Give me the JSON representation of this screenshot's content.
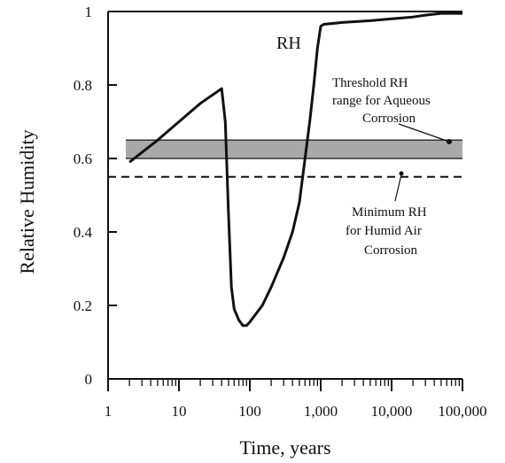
{
  "chart_data": {
    "type": "line",
    "xscale": "log",
    "xlabel": "Time, years",
    "ylabel": "Relative Humidity",
    "xlim": [
      1,
      100000
    ],
    "ylim": [
      0,
      1
    ],
    "xticks": [
      {
        "value": 1,
        "label": "1"
      },
      {
        "value": 10,
        "label": "10"
      },
      {
        "value": 100,
        "label": "100"
      },
      {
        "value": 1000,
        "label": "1,000"
      },
      {
        "value": 10000,
        "label": "10,000"
      },
      {
        "value": 100000,
        "label": "100,000"
      }
    ],
    "yticks": [
      {
        "value": 0,
        "label": "0"
      },
      {
        "value": 0.2,
        "label": "0.2"
      },
      {
        "value": 0.4,
        "label": "0.4"
      },
      {
        "value": 0.6,
        "label": "0.6"
      },
      {
        "value": 0.8,
        "label": "0.8"
      },
      {
        "value": 1,
        "label": "1"
      }
    ],
    "series": [
      {
        "name": "RH",
        "x": [
          2,
          5,
          10,
          20,
          40,
          45,
          50,
          55,
          60,
          70,
          80,
          90,
          100,
          150,
          200,
          300,
          400,
          500,
          600,
          700,
          800,
          900,
          1000,
          1100,
          2000,
          5000,
          10000,
          20000,
          30000,
          50000,
          100000
        ],
        "y": [
          0.59,
          0.65,
          0.7,
          0.75,
          0.79,
          0.7,
          0.45,
          0.25,
          0.19,
          0.16,
          0.145,
          0.145,
          0.155,
          0.2,
          0.25,
          0.33,
          0.4,
          0.48,
          0.6,
          0.7,
          0.8,
          0.9,
          0.96,
          0.965,
          0.97,
          0.975,
          0.98,
          0.985,
          0.99,
          0.995,
          0.995
        ]
      }
    ],
    "threshold_band": {
      "y_low": 0.6,
      "y_high": 0.65
    },
    "minimum_line": {
      "y": 0.55
    },
    "annotations": {
      "rh_label": "RH",
      "threshold_line1": "Threshold RH",
      "threshold_line2": "range for Aqueous",
      "threshold_line3": "Corrosion",
      "minimum_line1": "Minimum RH",
      "minimum_line2": "for Humid Air",
      "minimum_line3": "Corrosion"
    },
    "colors": {
      "line": "#111111",
      "band": "#9a9a9a",
      "axis": "#111111"
    }
  }
}
